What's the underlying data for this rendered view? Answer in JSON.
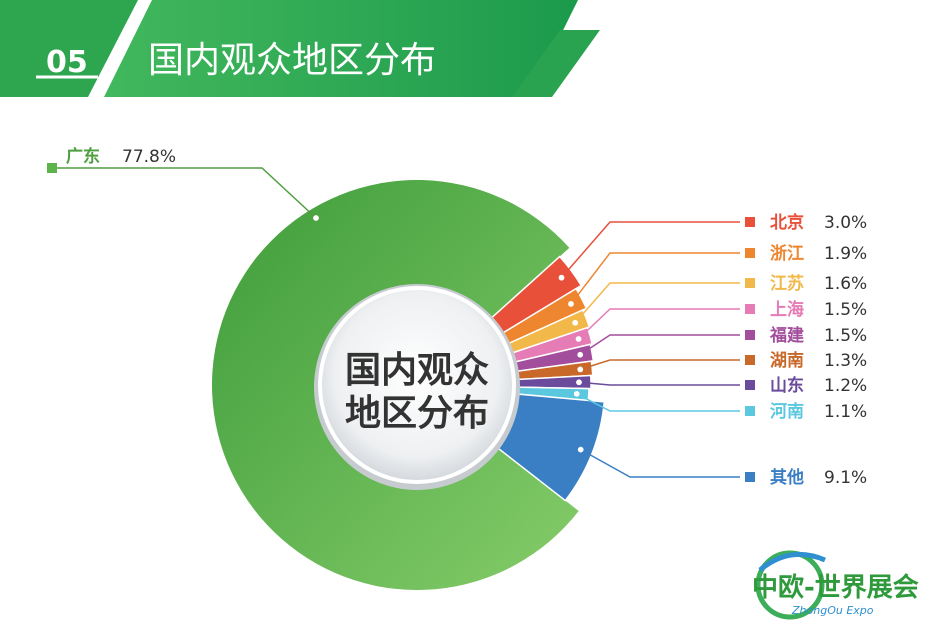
{
  "header": {
    "number": "05",
    "title": "国内观众地区分布"
  },
  "logo": {
    "name": "中欧-世界展会",
    "subtitle": "ZhongOu Expo"
  },
  "chart_data": {
    "type": "pie",
    "title": "",
    "center_label_lines": [
      "国内观众",
      "地区分布"
    ],
    "slices": [
      {
        "name": "广东",
        "value": 77.8,
        "label": "77.8%",
        "color": "#5bb34a"
      },
      {
        "name": "北京",
        "value": 3.0,
        "label": "3.0%",
        "color": "#e8503a"
      },
      {
        "name": "浙江",
        "value": 1.9,
        "label": "1.9%",
        "color": "#ee8630"
      },
      {
        "name": "江苏",
        "value": 1.6,
        "label": "1.6%",
        "color": "#f2b94a"
      },
      {
        "name": "上海",
        "value": 1.5,
        "label": "1.5%",
        "color": "#e57cb6"
      },
      {
        "name": "福建",
        "value": 1.5,
        "label": "1.5%",
        "color": "#a24e9c"
      },
      {
        "name": "湖南",
        "value": 1.3,
        "label": "1.3%",
        "color": "#c8692a"
      },
      {
        "name": "山东",
        "value": 1.2,
        "label": "1.2%",
        "color": "#6a4b9c"
      },
      {
        "name": "河南",
        "value": 1.1,
        "label": "1.1%",
        "color": "#5bc8e0"
      },
      {
        "name": "其他",
        "value": 9.1,
        "label": "9.1%",
        "color": "#3a7fc4"
      }
    ],
    "colors": {
      "banner_dark": "#1f9a4e",
      "banner_light": "#5cc06e",
      "leader_green": "#4f9e40"
    }
  }
}
